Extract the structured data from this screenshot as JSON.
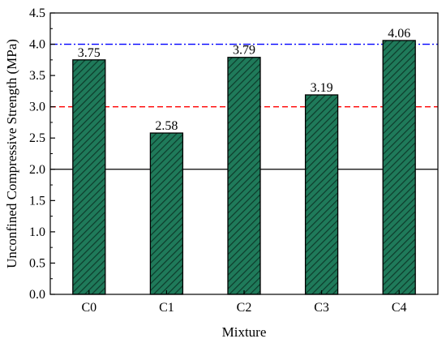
{
  "chart_data": {
    "type": "bar",
    "categories": [
      "C0",
      "C1",
      "C2",
      "C3",
      "C4"
    ],
    "values": [
      3.75,
      2.58,
      3.79,
      3.19,
      4.06
    ],
    "data_labels": [
      "3.75",
      "2.58",
      "3.79",
      "3.19",
      "4.06"
    ],
    "xlabel": "Mixture",
    "ylabel": "Unconfined Compressive Strength (MPa)",
    "ylim": [
      0,
      4.5
    ],
    "yticks": [
      "0.0",
      "0.5",
      "1.0",
      "1.5",
      "2.0",
      "2.5",
      "3.0",
      "3.5",
      "4.0",
      "4.5"
    ],
    "bar_fill": "#1f7a5a",
    "bar_hatch": "#0d3b2b",
    "reference_lines": [
      {
        "value": 4.0,
        "style": "dash-dot",
        "color": "#0000ff"
      },
      {
        "value": 3.0,
        "style": "dashed",
        "color": "#ff0000"
      },
      {
        "value": 2.0,
        "style": "solid",
        "color": "#000000"
      }
    ],
    "grid": false
  }
}
